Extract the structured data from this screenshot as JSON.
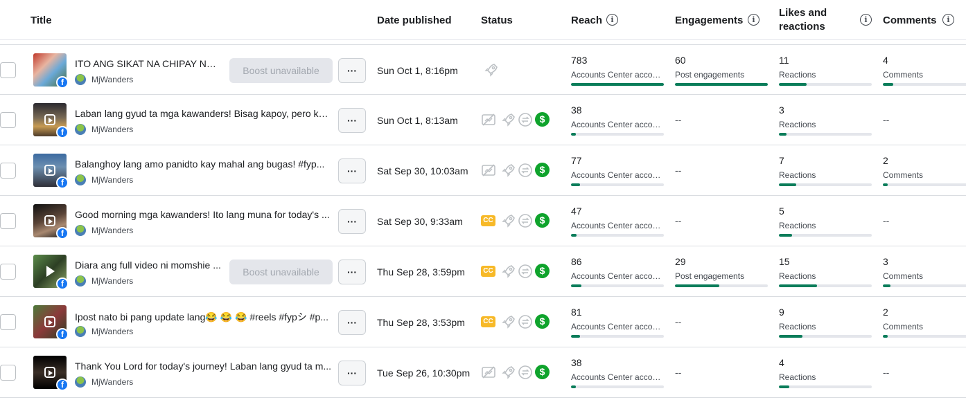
{
  "columns": {
    "title": "Title",
    "date": "Date published",
    "status": "Status",
    "reach": "Reach",
    "engagements": "Engagements",
    "likes": "Likes and reactions",
    "likes_line1": "Likes and",
    "likes_line2": "reactions",
    "comments": "Comments"
  },
  "info_glyph": "i",
  "facebook_glyph": "f",
  "boost_label": "Boost unavailable",
  "more_label": "···",
  "cc_label": "CC",
  "dollar_glyph": "$",
  "dash": "--",
  "colors": {
    "progress": "#0a7d5a",
    "boost_bg": "#e4e6eb",
    "cc_badge": "#f7b928",
    "monetized": "#0fa32c",
    "facebook": "#1877f2"
  },
  "rows": [
    {
      "title": "ITO ANG SIKAT NA CHIPAY NG T...",
      "page": "MjWanders",
      "thumb_type": "photo",
      "boost": true,
      "date": "Sun Oct 1, 8:16pm",
      "status_icons": [
        "boost-rocket-icon"
      ],
      "reach": {
        "value": "783",
        "label": "Accounts Center accou...",
        "fraction": 1.0
      },
      "engagements": {
        "value": "60",
        "label": "Post engagements",
        "fraction": 1.0
      },
      "likes": {
        "value": "11",
        "label": "Reactions",
        "fraction": 0.3
      },
      "comments": {
        "value": "4",
        "label": "Comments",
        "fraction": 0.11
      }
    },
    {
      "title": "Laban lang gyud ta mga kawanders! Bisag kapoy, pero kay...",
      "page": "MjWanders",
      "thumb_type": "reel",
      "boost": false,
      "date": "Sun Oct 1, 8:13am",
      "status_icons": [
        "no-captions-icon",
        "boost-rocket-icon",
        "crosspost-icon",
        "monetized-dollar-icon"
      ],
      "reach": {
        "value": "38",
        "label": "Accounts Center accou...",
        "fraction": 0.05
      },
      "engagements": null,
      "likes": {
        "value": "3",
        "label": "Reactions",
        "fraction": 0.08
      },
      "comments": null
    },
    {
      "title": "Balanghoy lang amo panidto kay mahal ang bugas! #fyp...",
      "page": "MjWanders",
      "thumb_type": "reel",
      "boost": false,
      "date": "Sat Sep 30, 10:03am",
      "status_icons": [
        "no-captions-icon",
        "boost-rocket-icon",
        "crosspost-icon",
        "monetized-dollar-icon"
      ],
      "reach": {
        "value": "77",
        "label": "Accounts Center accou...",
        "fraction": 0.1
      },
      "engagements": null,
      "likes": {
        "value": "7",
        "label": "Reactions",
        "fraction": 0.19
      },
      "comments": {
        "value": "2",
        "label": "Comments",
        "fraction": 0.05
      }
    },
    {
      "title": "Good morning mga kawanders! Ito lang muna for today's ...",
      "page": "MjWanders",
      "thumb_type": "reel",
      "boost": false,
      "date": "Sat Sep 30, 9:33am",
      "status_icons": [
        "cc-badge",
        "boost-rocket-icon",
        "crosspost-icon",
        "monetized-dollar-icon"
      ],
      "reach": {
        "value": "47",
        "label": "Accounts Center accou...",
        "fraction": 0.06
      },
      "engagements": null,
      "likes": {
        "value": "5",
        "label": "Reactions",
        "fraction": 0.14
      },
      "comments": null
    },
    {
      "title": "Diara ang full video ni momshie ...",
      "page": "MjWanders",
      "thumb_type": "video",
      "boost": true,
      "date": "Thu Sep 28, 3:59pm",
      "status_icons": [
        "cc-badge",
        "boost-rocket-icon",
        "crosspost-icon",
        "monetized-dollar-icon"
      ],
      "reach": {
        "value": "86",
        "label": "Accounts Center accou...",
        "fraction": 0.11
      },
      "engagements": {
        "value": "29",
        "label": "Post engagements",
        "fraction": 0.48
      },
      "likes": {
        "value": "15",
        "label": "Reactions",
        "fraction": 0.41
      },
      "comments": {
        "value": "3",
        "label": "Comments",
        "fraction": 0.08
      }
    },
    {
      "title": "Ipost nato bi pang update lang😂 😂 😂  #reels #fypシ #p...",
      "page": "MjWanders",
      "thumb_type": "reel",
      "boost": false,
      "date": "Thu Sep 28, 3:53pm",
      "status_icons": [
        "cc-badge",
        "boost-rocket-icon",
        "crosspost-icon",
        "monetized-dollar-icon"
      ],
      "reach": {
        "value": "81",
        "label": "Accounts Center accou...",
        "fraction": 0.1
      },
      "engagements": null,
      "likes": {
        "value": "9",
        "label": "Reactions",
        "fraction": 0.25
      },
      "comments": {
        "value": "2",
        "label": "Comments",
        "fraction": 0.05
      }
    },
    {
      "title": "Thank You Lord for today's journey! Laban lang gyud ta m...",
      "page": "MjWanders",
      "thumb_type": "reel",
      "boost": false,
      "date": "Tue Sep 26, 10:30pm",
      "status_icons": [
        "no-captions-icon",
        "boost-rocket-icon",
        "crosspost-icon",
        "monetized-dollar-icon"
      ],
      "reach": {
        "value": "38",
        "label": "Accounts Center accou...",
        "fraction": 0.05
      },
      "engagements": null,
      "likes": {
        "value": "4",
        "label": "Reactions",
        "fraction": 0.11
      },
      "comments": null
    }
  ]
}
